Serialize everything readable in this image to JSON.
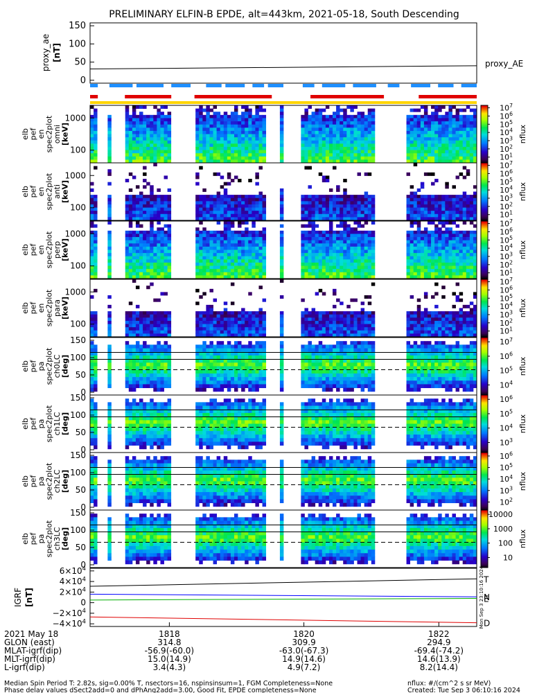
{
  "title": "PRELIMINARY ELFIN-B EPDE, alt=443km, 2021-05-18, South Descending",
  "colors": {
    "fg": "#000000",
    "red_bar": "#e00000",
    "blue_bar": "#1e8fff",
    "yellow_bar": "#ffd400",
    "curve_T": "#000000",
    "curve_N": "#0000ff",
    "curve_E": "#00b000",
    "curve_D": "#e00000"
  },
  "chart_data": [
    {
      "type": "line",
      "panel": "proxy_ae",
      "ylabel": [
        "proxy_ae",
        "[nT]"
      ],
      "yticks": [
        "150",
        "100",
        "50",
        "0"
      ],
      "ytick_values": [
        150,
        100,
        50,
        0
      ],
      "ylim": [
        -8,
        158
      ],
      "series": [
        {
          "name": "proxy_AE",
          "x": [
            0,
            1
          ],
          "values": [
            31,
            40
          ]
        }
      ]
    },
    {
      "type": "bar",
      "panel": "state_bars",
      "blue_segments": [
        [
          0.0,
          0.02
        ],
        [
          0.05,
          0.11
        ],
        [
          0.12,
          0.19
        ],
        [
          0.21,
          0.26
        ],
        [
          0.3,
          0.34
        ],
        [
          0.35,
          0.4
        ],
        [
          0.42,
          0.45
        ],
        [
          0.46,
          0.5
        ],
        [
          0.55,
          0.58
        ],
        [
          0.6,
          0.66
        ],
        [
          0.68,
          0.74
        ],
        [
          0.77,
          0.8
        ],
        [
          0.83,
          0.88
        ],
        [
          0.9,
          0.94
        ],
        [
          0.96,
          1.0
        ]
      ],
      "red_segments": [
        [
          0.0,
          0.02
        ],
        [
          0.09,
          0.21
        ],
        [
          0.27,
          0.47
        ],
        [
          0.57,
          0.76
        ],
        [
          0.85,
          1.0
        ]
      ],
      "yellow_segments": [
        [
          0.0,
          1.0
        ]
      ]
    },
    {
      "type": "heatmap",
      "panel": "energy_spectra",
      "panels": [
        {
          "ylabel": [
            "elb",
            "pef",
            "en",
            "spec2plot",
            "omni",
            "[keV]"
          ],
          "yticks": [
            "1000",
            "100"
          ],
          "cbar_ticks": [
            "10^7",
            "10^6",
            "10^5",
            "10^4",
            "10^3",
            "10^2",
            "10^1"
          ],
          "cbar_label": "nflux"
        },
        {
          "ylabel": [
            "elb",
            "pef",
            "en",
            "spec2plot",
            "anti",
            "[keV]"
          ],
          "yticks": [
            "1000",
            "100"
          ],
          "cbar_ticks": [
            "10^7",
            "10^6",
            "10^5",
            "10^4",
            "10^3",
            "10^2",
            "10^1"
          ],
          "cbar_label": "nflux"
        },
        {
          "ylabel": [
            "elb",
            "pef",
            "en",
            "spec2plot",
            "perp",
            "[keV]"
          ],
          "yticks": [
            "1000",
            "100"
          ],
          "cbar_ticks": [
            "10^7",
            "10^6",
            "10^5",
            "10^4",
            "10^3",
            "10^2",
            "10^1"
          ],
          "cbar_label": "nflux"
        },
        {
          "ylabel": [
            "elb",
            "pef",
            "en",
            "spec2plot",
            "para",
            "[keV]"
          ],
          "yticks": [
            "1000",
            "100"
          ],
          "cbar_ticks": [
            "10^7",
            "10^6",
            "10^5",
            "10^4",
            "10^3",
            "10^2",
            "10^1"
          ],
          "cbar_label": "nflux"
        }
      ]
    },
    {
      "type": "heatmap",
      "panel": "pitch_angle_spectra",
      "panels": [
        {
          "ylabel": [
            "elb",
            "pef",
            "pa",
            "spec2plot",
            "ch0LC",
            "[deg]"
          ],
          "yticks": [
            "150",
            "100",
            "50",
            "0"
          ],
          "cbar_ticks": [
            "10^7",
            "10^6",
            "10^5",
            "10^4"
          ],
          "cbar_label": "nflux"
        },
        {
          "ylabel": [
            "elb",
            "pef",
            "pa",
            "spec2plot",
            "ch1LC",
            "[deg]"
          ],
          "yticks": [
            "150",
            "100",
            "50",
            "0"
          ],
          "cbar_ticks": [
            "10^6",
            "10^5",
            "10^4",
            "10^3"
          ],
          "cbar_label": "nflux"
        },
        {
          "ylabel": [
            "elb",
            "pef",
            "pa",
            "spec2plot",
            "ch2LC",
            "[deg]"
          ],
          "yticks": [
            "150",
            "100",
            "50",
            "0"
          ],
          "cbar_ticks": [
            "10^6",
            "10^5",
            "10^4",
            "10^3",
            "10^2"
          ],
          "cbar_label": "nflux"
        },
        {
          "ylabel": [
            "elb",
            "pef",
            "pa",
            "spec2plot",
            "ch3LC",
            "[deg]"
          ],
          "yticks": [
            "150",
            "100",
            "50",
            "0"
          ],
          "cbar_ticks": [
            "10000",
            "1000",
            "100",
            "10"
          ],
          "cbar_label": "nflux"
        }
      ]
    },
    {
      "type": "line",
      "panel": "igrf",
      "ylabel": [
        "IGRF",
        "[nT]"
      ],
      "yticks": [
        "6×10^4",
        "4×10^4",
        "2×10^4",
        "0",
        "−2×10^4",
        "−4×10^4"
      ],
      "ytick_values": [
        60000,
        40000,
        20000,
        0,
        -20000,
        -40000
      ],
      "ylim": [
        -45000,
        65000
      ],
      "series": [
        {
          "name": "T",
          "x": [
            0,
            1
          ],
          "values": [
            31000,
            45000
          ]
        },
        {
          "name": "N",
          "x": [
            0,
            1
          ],
          "values": [
            16000,
            11000
          ]
        },
        {
          "name": "E",
          "x": [
            0,
            1
          ],
          "values": [
            5000,
            8000
          ]
        },
        {
          "name": "D",
          "x": [
            0,
            1
          ],
          "values": [
            -27000,
            -38000
          ]
        }
      ],
      "vertical_stamp": "Mon Sep 3 23:10:16 2024"
    }
  ],
  "xaxis": {
    "date": "2021 May 18",
    "row_labels": [
      "GLON (east)",
      "MLAT-igrf(dip)",
      "MLT-igrf(dip)",
      "L-igrf(dip)"
    ],
    "ticks": [
      {
        "label": "1818",
        "frac": 0.205,
        "glon": "314.8",
        "mlat": "-56.9(-60.0)",
        "mlt": "15.0(14.9)",
        "l": "3.4(4.3)"
      },
      {
        "label": "1820",
        "frac": 0.553,
        "glon": "309.9",
        "mlat": "-63.0(-67.3)",
        "mlt": "14.9(14.6)",
        "l": "4.9(7.2)"
      },
      {
        "label": "1822",
        "frac": 0.902,
        "glon": "294.9",
        "mlat": "-69.4(-74.2)",
        "mlt": "14.6(13.9)",
        "l": "8.2(14.4)"
      }
    ]
  },
  "footer": {
    "left1": "Median Spin Period T: 2.82s, sig=0.00% T, nsectors=16, nspinsinsum=1, FGM Completeness=None",
    "left2": "Phase delay values dSect2add=0 and dPhAng2add=3.00, Good Fit, EPDE completeness=None",
    "right1": "nflux: #/(cm^2 s sr MeV)",
    "right2": "Created: Tue Sep  3 06:10:16 2024"
  }
}
